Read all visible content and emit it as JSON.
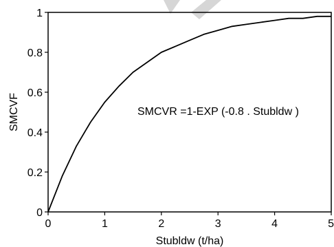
{
  "chart_data": {
    "type": "line",
    "xlabel": "Stubldw  (t/ha)",
    "ylabel": "SMCVF",
    "xlim": [
      0,
      5
    ],
    "ylim": [
      0,
      1
    ],
    "xticks": [
      0,
      1,
      2,
      3,
      4,
      5
    ],
    "yticks": [
      0,
      0.2,
      0.4,
      0.6,
      0.8,
      1
    ],
    "xtick_labels": [
      "0",
      "1",
      "2",
      "3",
      "4",
      "5"
    ],
    "ytick_labels": [
      "0",
      "0.2",
      "0.4",
      "0.6",
      "0.8",
      "1"
    ],
    "grid": false,
    "annotation": "SMCVR =1-EXP (-0.8 . Stubldw )",
    "series": [
      {
        "x": [
          0,
          0.25,
          0.5,
          0.75,
          1.0,
          1.25,
          1.5,
          1.75,
          2.0,
          2.25,
          2.5,
          2.75,
          3.0,
          3.25,
          3.5,
          3.75,
          4.0,
          4.25,
          4.5,
          4.75,
          5.0
        ],
        "values": [
          0,
          0.18,
          0.33,
          0.45,
          0.55,
          0.63,
          0.7,
          0.75,
          0.8,
          0.83,
          0.86,
          0.89,
          0.91,
          0.93,
          0.94,
          0.95,
          0.96,
          0.97,
          0.97,
          0.98,
          0.98
        ]
      }
    ],
    "line_color": "#000000"
  }
}
